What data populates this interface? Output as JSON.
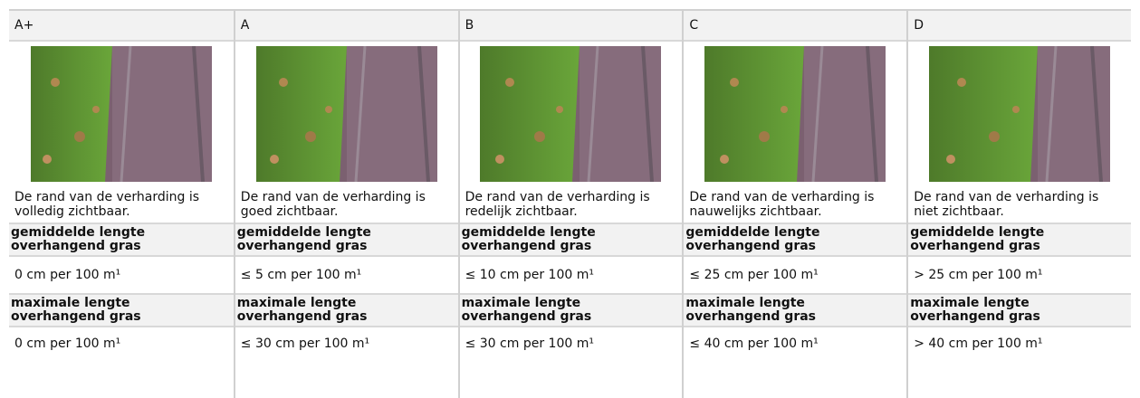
{
  "columns": [
    {
      "grade": "A+",
      "description": "De rand van de verharding is volledig zichtbaar.",
      "avg_label": "gemiddelde lengte overhangend gras",
      "avg_value": "0 cm per 100 m¹",
      "max_label": "maximale lengte overhangend gras",
      "max_value": "0 cm per 100 m¹"
    },
    {
      "grade": "A",
      "description": "De rand van de verharding is goed zichtbaar.",
      "avg_label": "gemiddelde lengte overhangend gras",
      "avg_value": "≤ 5 cm per 100 m¹",
      "max_label": "maximale lengte overhangend gras",
      "max_value": "≤ 30 cm per 100 m¹"
    },
    {
      "grade": "B",
      "description": "De rand van de verharding is redelijk zichtbaar.",
      "avg_label": "gemiddelde lengte overhangend gras",
      "avg_value": "≤ 10 cm per 100 m¹",
      "max_label": "maximale lengte overhangend gras",
      "max_value": "≤ 30 cm per 100 m¹"
    },
    {
      "grade": "C",
      "description": "De rand van de verharding is nauwelijks zichtbaar.",
      "avg_label": "gemiddelde lengte overhangend gras",
      "avg_value": "≤ 25 cm per 100 m¹",
      "max_label": "maximale lengte overhangend gras",
      "max_value": "≤ 40 cm per 100 m¹"
    },
    {
      "grade": "D",
      "description": "De rand van de verharding is niet zichtbaar.",
      "avg_label": "gemiddelde lengte overhangend gras",
      "avg_value": "> 25 cm per 100 m¹",
      "max_label": "maximale lengte overhangend gras",
      "max_value": "> 40 cm per 100 m¹"
    }
  ]
}
